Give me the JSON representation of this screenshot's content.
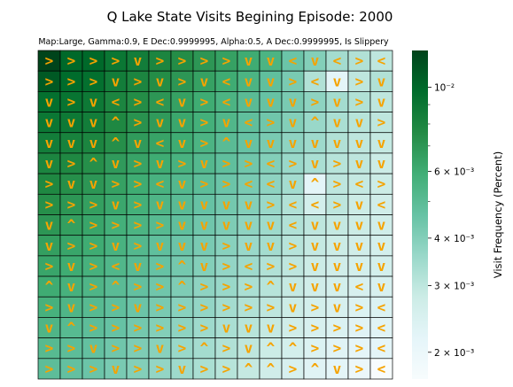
{
  "chart_data": {
    "type": "heatmap",
    "title": "Q Lake State Visits Begining Episode: 2000",
    "subtitle": "Map:Large, Gamma:0.9, E Dec:0.9999995, Alpha:0.5, A Dec:0.9999995, Is Slippery",
    "colorbar_label": "Visit Frequency (Percent)",
    "colorbar_scale": "log",
    "colorbar_range": [
      0.0017,
      0.0125
    ],
    "colorbar_ticks": [
      {
        "value": 0.01,
        "label": "10⁻²"
      },
      {
        "value": 0.006,
        "label": "6 × 10⁻³"
      },
      {
        "value": 0.004,
        "label": "4 × 10⁻³"
      },
      {
        "value": 0.003,
        "label": "3 × 10⁻³"
      },
      {
        "value": 0.002,
        "label": "2 × 10⁻³"
      }
    ],
    "colormap": [
      "#f7fcfd",
      "#e5f5f9",
      "#ccece6",
      "#99d8c9",
      "#66c2a4",
      "#41ae76",
      "#238b45",
      "#006d2c",
      "#00441b"
    ],
    "arrow_color": "#f5a300",
    "grid_rows": 16,
    "grid_cols": 16,
    "actions": [
      [
        ">",
        ">",
        ">",
        ">",
        "v",
        ">",
        ">",
        ">",
        ">",
        "v",
        "v",
        "<",
        "v",
        "<",
        ">",
        "<"
      ],
      [
        ">",
        ">",
        ">",
        "v",
        ">",
        "v",
        ">",
        "v",
        "<",
        "v",
        "v",
        ">",
        "<",
        "v",
        ">",
        "v"
      ],
      [
        "v",
        ">",
        "v",
        "<",
        ">",
        "<",
        "v",
        ">",
        "<",
        "v",
        "v",
        "v",
        ">",
        "v",
        ">",
        "v"
      ],
      [
        "v",
        "v",
        "v",
        "^",
        ">",
        "v",
        "v",
        ">",
        "v",
        "<",
        ">",
        "v",
        "^",
        "v",
        "v",
        ">"
      ],
      [
        "v",
        "v",
        "v",
        "^",
        "v",
        "<",
        "v",
        ">",
        "^",
        "v",
        "v",
        "v",
        "v",
        "v",
        "v",
        "v"
      ],
      [
        "v",
        ">",
        "^",
        "v",
        ">",
        "v",
        ">",
        "v",
        ">",
        ">",
        "<",
        ">",
        "v",
        ">",
        "v",
        "v"
      ],
      [
        ">",
        "v",
        "v",
        ">",
        ">",
        "<",
        "v",
        ">",
        ">",
        "<",
        "<",
        "v",
        "^",
        ">",
        "<",
        ">"
      ],
      [
        ">",
        ">",
        ">",
        "v",
        ">",
        "v",
        "v",
        "v",
        "v",
        "v",
        ">",
        "<",
        "<",
        ">",
        "v",
        "<"
      ],
      [
        "v",
        "^",
        ">",
        ">",
        ">",
        ">",
        "v",
        "v",
        "v",
        "v",
        "v",
        "<",
        "v",
        "v",
        "v",
        "v"
      ],
      [
        "v",
        ">",
        ">",
        "v",
        ">",
        "v",
        "v",
        "v",
        ">",
        "v",
        "v",
        ">",
        "v",
        "v",
        "v",
        "v"
      ],
      [
        ">",
        "v",
        ">",
        "<",
        "v",
        ">",
        "^",
        "v",
        ">",
        "<",
        ">",
        ">",
        "v",
        "v",
        "v",
        "v"
      ],
      [
        "^",
        "v",
        ">",
        "^",
        ">",
        ">",
        "^",
        ">",
        ">",
        ">",
        "^",
        "v",
        "v",
        "v",
        "<",
        "v"
      ],
      [
        ">",
        "v",
        ">",
        ">",
        "v",
        ">",
        ">",
        ">",
        ">",
        ">",
        ">",
        "v",
        ">",
        "v",
        ">",
        "<"
      ],
      [
        "v",
        "^",
        ">",
        ">",
        ">",
        ">",
        ">",
        ">",
        "v",
        "v",
        "v",
        ">",
        ">",
        ">",
        ">",
        "<"
      ],
      [
        ">",
        ">",
        "v",
        ">",
        ">",
        "v",
        ">",
        "^",
        ">",
        "v",
        "^",
        "^",
        ">",
        ">",
        ">",
        "<"
      ],
      [
        ">",
        ">",
        ">",
        "v",
        ">",
        ">",
        "v",
        ">",
        ">",
        "^",
        "^",
        ">",
        "^",
        "v",
        ">",
        "<"
      ]
    ],
    "visit_frequency": [
      [
        0.0125,
        0.01,
        0.01,
        0.009,
        0.0085,
        0.008,
        0.0075,
        0.007,
        0.0065,
        0.006,
        0.0055,
        0.0045,
        0.004,
        0.0034,
        0.0032,
        0.003
      ],
      [
        0.011,
        0.0098,
        0.0095,
        0.0085,
        0.008,
        0.0075,
        0.007,
        0.0065,
        0.006,
        0.0055,
        0.0048,
        0.0042,
        0.0032,
        0.0022,
        0.003,
        0.0032
      ],
      [
        0.0095,
        0.0092,
        0.0088,
        0.008,
        0.0075,
        0.007,
        0.0065,
        0.006,
        0.0055,
        0.005,
        0.0046,
        0.0042,
        0.0038,
        0.0034,
        0.0032,
        0.003
      ],
      [
        0.009,
        0.0088,
        0.0085,
        0.0078,
        0.0072,
        0.0068,
        0.0062,
        0.0058,
        0.0053,
        0.0048,
        0.0044,
        0.004,
        0.0036,
        0.0033,
        0.0031,
        0.003
      ],
      [
        0.0085,
        0.0082,
        0.008,
        0.0074,
        0.0068,
        0.0064,
        0.006,
        0.0055,
        0.005,
        0.0046,
        0.0042,
        0.0038,
        0.0035,
        0.0032,
        0.003,
        0.0029
      ],
      [
        0.008,
        0.0078,
        0.0074,
        0.0068,
        0.0064,
        0.006,
        0.0056,
        0.0052,
        0.0048,
        0.0044,
        0.004,
        0.0036,
        0.0033,
        0.0031,
        0.003,
        0.0028
      ],
      [
        0.0078,
        0.0074,
        0.007,
        0.0065,
        0.006,
        0.0056,
        0.0052,
        0.0049,
        0.0045,
        0.0042,
        0.0038,
        0.0034,
        0.0022,
        0.003,
        0.0029,
        0.0028
      ],
      [
        0.0074,
        0.007,
        0.0066,
        0.0062,
        0.0058,
        0.0054,
        0.005,
        0.0046,
        0.0043,
        0.004,
        0.0036,
        0.0032,
        0.0026,
        0.003,
        0.0028,
        0.0027
      ],
      [
        0.007,
        0.0066,
        0.0063,
        0.0058,
        0.0055,
        0.0051,
        0.0048,
        0.0044,
        0.0041,
        0.0038,
        0.0035,
        0.0032,
        0.003,
        0.0029,
        0.0028,
        0.0027
      ],
      [
        0.0066,
        0.0063,
        0.006,
        0.0056,
        0.0052,
        0.0048,
        0.0045,
        0.0042,
        0.0039,
        0.0036,
        0.0034,
        0.0031,
        0.0029,
        0.0028,
        0.0027,
        0.0026
      ],
      [
        0.0063,
        0.006,
        0.0057,
        0.0053,
        0.005,
        0.0046,
        0.0043,
        0.004,
        0.0037,
        0.0035,
        0.0032,
        0.003,
        0.0028,
        0.0027,
        0.0026,
        0.0026
      ],
      [
        0.006,
        0.0057,
        0.0054,
        0.005,
        0.0047,
        0.0044,
        0.0041,
        0.0038,
        0.0036,
        0.0033,
        0.0031,
        0.0029,
        0.0027,
        0.0026,
        0.0025,
        0.0025
      ],
      [
        0.0057,
        0.0054,
        0.0051,
        0.0048,
        0.0045,
        0.0042,
        0.0039,
        0.0037,
        0.0034,
        0.0032,
        0.003,
        0.0028,
        0.0026,
        0.0025,
        0.0024,
        0.0024
      ],
      [
        0.0054,
        0.0051,
        0.0049,
        0.0046,
        0.0043,
        0.004,
        0.0038,
        0.0035,
        0.0033,
        0.0031,
        0.0029,
        0.0027,
        0.0025,
        0.0024,
        0.0023,
        0.0023
      ],
      [
        0.0051,
        0.0049,
        0.0047,
        0.0044,
        0.0041,
        0.0039,
        0.0036,
        0.0034,
        0.0032,
        0.003,
        0.0028,
        0.0026,
        0.0024,
        0.0023,
        0.0022,
        0.0022
      ],
      [
        0.0049,
        0.0047,
        0.0045,
        0.0042,
        0.004,
        0.0037,
        0.0035,
        0.0033,
        0.0031,
        0.0029,
        0.0027,
        0.0025,
        0.0023,
        0.0022,
        0.002,
        0.0017
      ]
    ]
  }
}
